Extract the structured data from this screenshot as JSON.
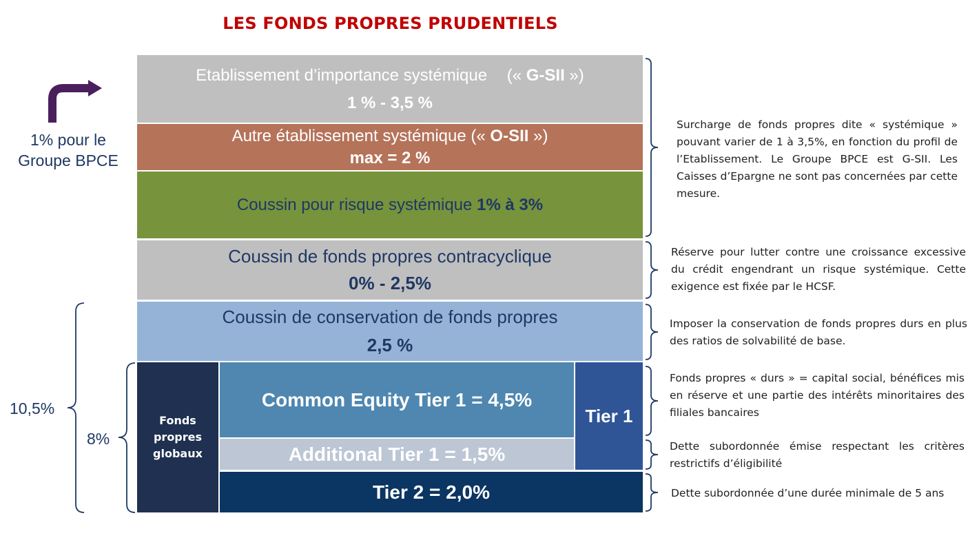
{
  "title": "LES FONDS PROPRES PRUDENTIELS",
  "blocks": {
    "gsii": {
      "line1": "Etablissement d’importance systémique",
      "open": "(« ",
      "strong": "G-SII",
      "close": " »)",
      "line2": "1 % - 3,5 %"
    },
    "osii": {
      "line1": "Autre établissement systémique (« ",
      "strong": "O-SII",
      "close": " »)",
      "line2": "max = 2 %"
    },
    "systemic": {
      "text": "Coussin pour risque systémique ",
      "strong": "1% à 3%"
    },
    "contra": {
      "line1": "Coussin de fonds propres contracyclique",
      "line2": "0% - 2,5%"
    },
    "conservation": {
      "line1": "Coussin de conservation de fonds propres",
      "line2": "2,5 %"
    },
    "fonds_globaux": {
      "line1": "Fonds",
      "line2": "propres",
      "line3": "globaux"
    },
    "cet1": "Common Equity Tier 1 = 4,5%",
    "at1": "Additional Tier 1 = 1,5%",
    "tier1": "Tier 1",
    "tier2": "Tier 2 = 2,0%"
  },
  "left_labels": {
    "bpce_line1": "1% pour le",
    "bpce_line2": "Groupe BPCE",
    "pct_10_5": "10,5%",
    "pct_8": "8%"
  },
  "notes": {
    "systemic": "Surcharge de fonds propres dite « systémique » pouvant varier de 1 à 3,5%, en fonction du profil de l’Etablissement. Le Groupe BPCE est G-SII. Les Caisses d’Epargne ne sont pas concernées par cette mesure.",
    "contra": "Réserve pour lutter contre une croissance excessive du crédit engendrant un risque systémique. Cette exigence est fixée par le HCSF.",
    "conservation": "Imposer la conservation de fonds propres durs en plus des ratios de solvabilité de base.",
    "cet1": "Fonds propres « durs » = capital social, bénéfices mis en réserve et une partie des intérêts minoritaires des filiales bancaires",
    "at1": "Dette subordonnée émise respectant les critères restrictifs d’éligibilité",
    "tier2": "Dette subordonnée d’une durée minimale de 5 ans"
  },
  "colors": {
    "title": "#c00000",
    "gsii": "#bfbfbf",
    "osii": "#b5735a",
    "systemic": "#77933c",
    "contra": "#bfbfbf",
    "conservation": "#95b3d7",
    "fonds_globaux": "#1f3050",
    "cet1": "#4f87b0",
    "at1": "#bcc6d4",
    "tier1": "#2f5597",
    "tier2": "#0b3562",
    "dark_text": "#1f3864",
    "arrow": "#4b1f5c"
  }
}
